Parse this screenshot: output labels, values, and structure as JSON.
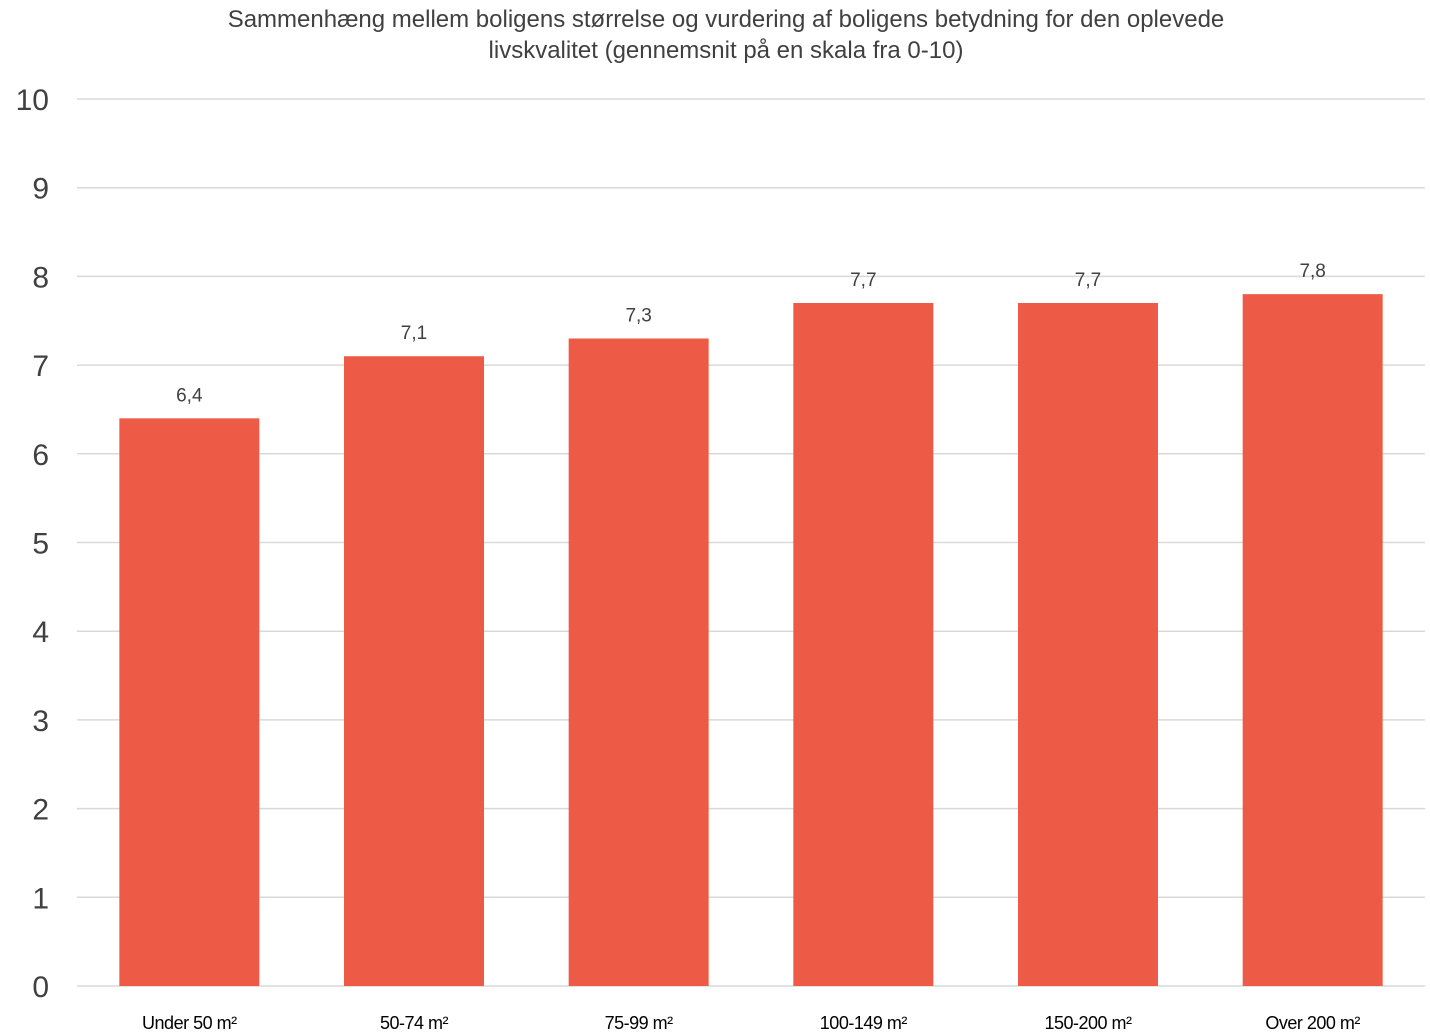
{
  "chart_data": {
    "type": "bar",
    "title_lines": [
      "Sammenhæng mellem boligens størrelse og vurdering af boligens betydning for den oplevede",
      "livskvalitet (gennemsnit på en skala fra 0-10)"
    ],
    "xlabel": "",
    "ylabel": "",
    "categories": [
      "Under 50 m²",
      "50-74 m²",
      "75-99 m²",
      "100-149 m²",
      "150-200 m²",
      "Over 200 m²"
    ],
    "values": [
      6.4,
      7.1,
      7.3,
      7.7,
      7.7,
      7.8
    ],
    "data_labels": [
      "6,4",
      "7,1",
      "7,3",
      "7,7",
      "7,7",
      "7,8"
    ],
    "ylim": [
      0,
      10
    ],
    "yticks": [
      "0",
      "1",
      "2",
      "3",
      "4",
      "5",
      "6",
      "7",
      "8",
      "9",
      "10"
    ],
    "grid": true,
    "legend": "none",
    "bar_color": "#ed5b46"
  }
}
